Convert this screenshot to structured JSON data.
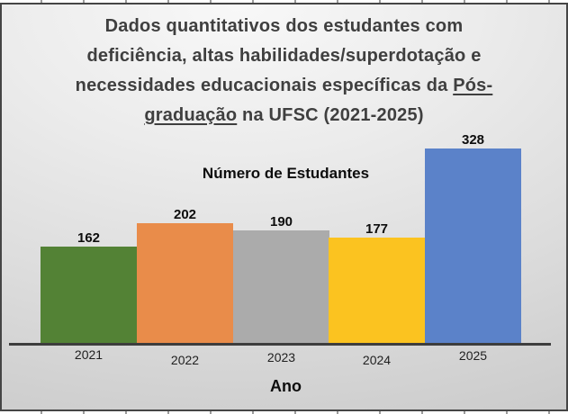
{
  "chart_data": {
    "type": "bar",
    "title": "Dados quantitativos dos estudantes com deficiência, altas habilidades/superdotação e necessidades educacionais específicas da Pós-graduação na UFSC (2021-2025)",
    "title_underlined_phrase": "Pós-graduação",
    "series_label": "Número de Estudantes",
    "xlabel": "Ano",
    "categories": [
      "2021",
      "2022",
      "2023",
      "2024",
      "2025"
    ],
    "values": [
      162,
      202,
      190,
      177,
      328
    ],
    "data_labels": [
      162,
      202,
      190,
      177,
      328
    ],
    "bar_colors": [
      "#538235",
      "#E98C4A",
      "#ABABAB",
      "#FBC320",
      "#5B82C9"
    ],
    "axis_color": "#3D3D3D",
    "title_color": "#3F3F3F",
    "grid": false,
    "legend_position": "none",
    "ylim": [
      0,
      328
    ]
  },
  "title_lines": [
    {
      "before": "Dados quantitativos dos estudantes com",
      "underlined": "",
      "after": ""
    },
    {
      "before": "deficiência, altas habilidades/superdotação e",
      "underlined": "",
      "after": ""
    },
    {
      "before": "necessidades educacionais específicas da ",
      "underlined": "Pós-",
      "after": ""
    },
    {
      "before": "",
      "underlined": "graduação",
      "after": " na UFSC (2021-2025)"
    }
  ]
}
